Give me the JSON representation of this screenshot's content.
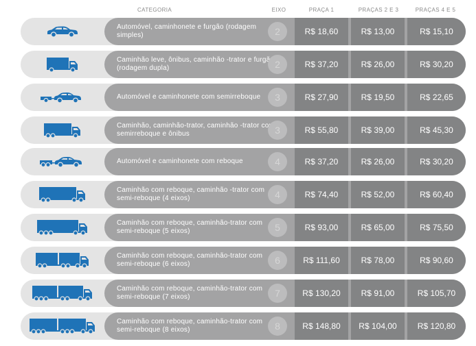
{
  "header": {
    "categoria": "CATEGORIA",
    "eixo": "EIXO",
    "praca1": "PRAÇA 1",
    "pracas23": "PRAÇAS 2 E 3",
    "pracas45": "PRAÇAS 4 E 5"
  },
  "colors": {
    "icon": "#1f73b7",
    "pill_light": "#e4e4e4",
    "band": "#a3a3a4",
    "price_cell": "#838485"
  },
  "rows": [
    {
      "icon": "car-icon",
      "description": "Automóvel, caminhonete e furgão (rodagem simples)",
      "axles": "2",
      "praca1": "R$ 18,60",
      "pracas23": "R$ 13,00",
      "pracas45": "R$ 15,10"
    },
    {
      "icon": "light-truck-icon",
      "description": "Caminhão leve, ônibus, caminhão -trator e furgão (rodagem dupla)",
      "axles": "2",
      "praca1": "R$ 37,20",
      "pracas23": "R$ 26,00",
      "pracas45": "R$ 30,20"
    },
    {
      "icon": "car-with-semitrailer-icon",
      "description": "Automóvel e caminhonete com semirreboque",
      "axles": "3",
      "praca1": "R$ 27,90",
      "pracas23": "R$ 19,50",
      "pracas45": "R$ 22,65"
    },
    {
      "icon": "truck-3-axles-icon",
      "description": "Caminhão, caminhão-trator, caminhão -trator com semirreboque e ônibus",
      "axles": "3",
      "praca1": "R$ 55,80",
      "pracas23": "R$ 39,00",
      "pracas45": "R$ 45,30"
    },
    {
      "icon": "car-with-trailer-icon",
      "description": "Automóvel e caminhonete com reboque",
      "axles": "4",
      "praca1": "R$ 37,20",
      "pracas23": "R$ 26,00",
      "pracas45": "R$ 30,20"
    },
    {
      "icon": "truck-4-axles-icon",
      "description": "Caminhão com reboque, caminhão -trator com semi-reboque (4 eixos)",
      "axles": "4",
      "praca1": "R$ 74,40",
      "pracas23": "R$ 52,00",
      "pracas45": "R$ 60,40"
    },
    {
      "icon": "truck-5-axles-icon",
      "description": "Caminhão com reboque, caminhão-trator com semi-reboque (5 eixos)",
      "axles": "5",
      "praca1": "R$ 93,00",
      "pracas23": "R$ 65,00",
      "pracas45": "R$ 75,50"
    },
    {
      "icon": "truck-6-axles-icon",
      "description": "Caminhão com reboque, caminhão-trator com semi-reboque (6 eixos)",
      "axles": "6",
      "praca1": "R$ 111,60",
      "pracas23": "R$ 78,00",
      "pracas45": "R$ 90,60"
    },
    {
      "icon": "truck-7-axles-icon",
      "description": "Caminhão com reboque, caminhão-trator com semi-reboque (7 eixos)",
      "axles": "7",
      "praca1": "R$ 130,20",
      "pracas23": "R$ 91,00",
      "pracas45": "R$ 105,70"
    },
    {
      "icon": "truck-8-axles-icon",
      "description": "Caminhão com reboque, caminhão-trator com semi-reboque (8 eixos)",
      "axles": "8",
      "praca1": "R$ 148,80",
      "pracas23": "R$ 104,00",
      "pracas45": "R$ 120,80"
    }
  ]
}
